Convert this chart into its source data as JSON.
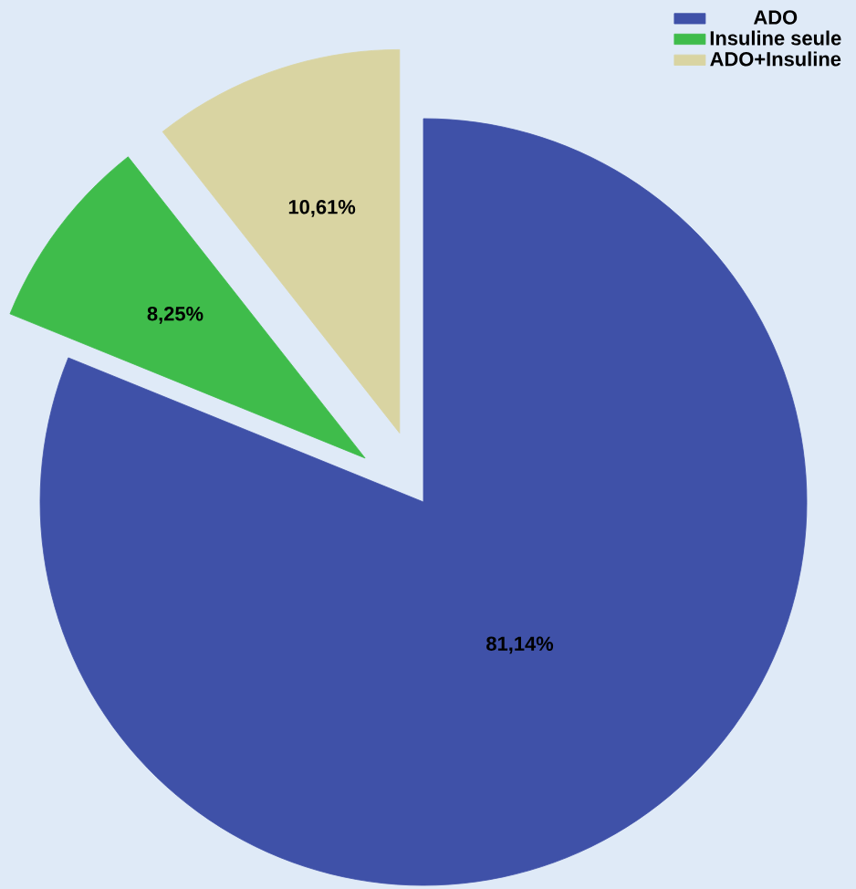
{
  "chart_data": {
    "type": "pie",
    "categories": [
      "ADO",
      "Insuline seule",
      "ADO+Insuline"
    ],
    "values": [
      81.14,
      8.25,
      10.61
    ],
    "colors": [
      "#3f51a8",
      "#3fbc4b",
      "#d9d4a2"
    ],
    "value_labels": [
      "81,14%",
      "8,25%",
      "10,61%"
    ],
    "legend": "top right"
  }
}
